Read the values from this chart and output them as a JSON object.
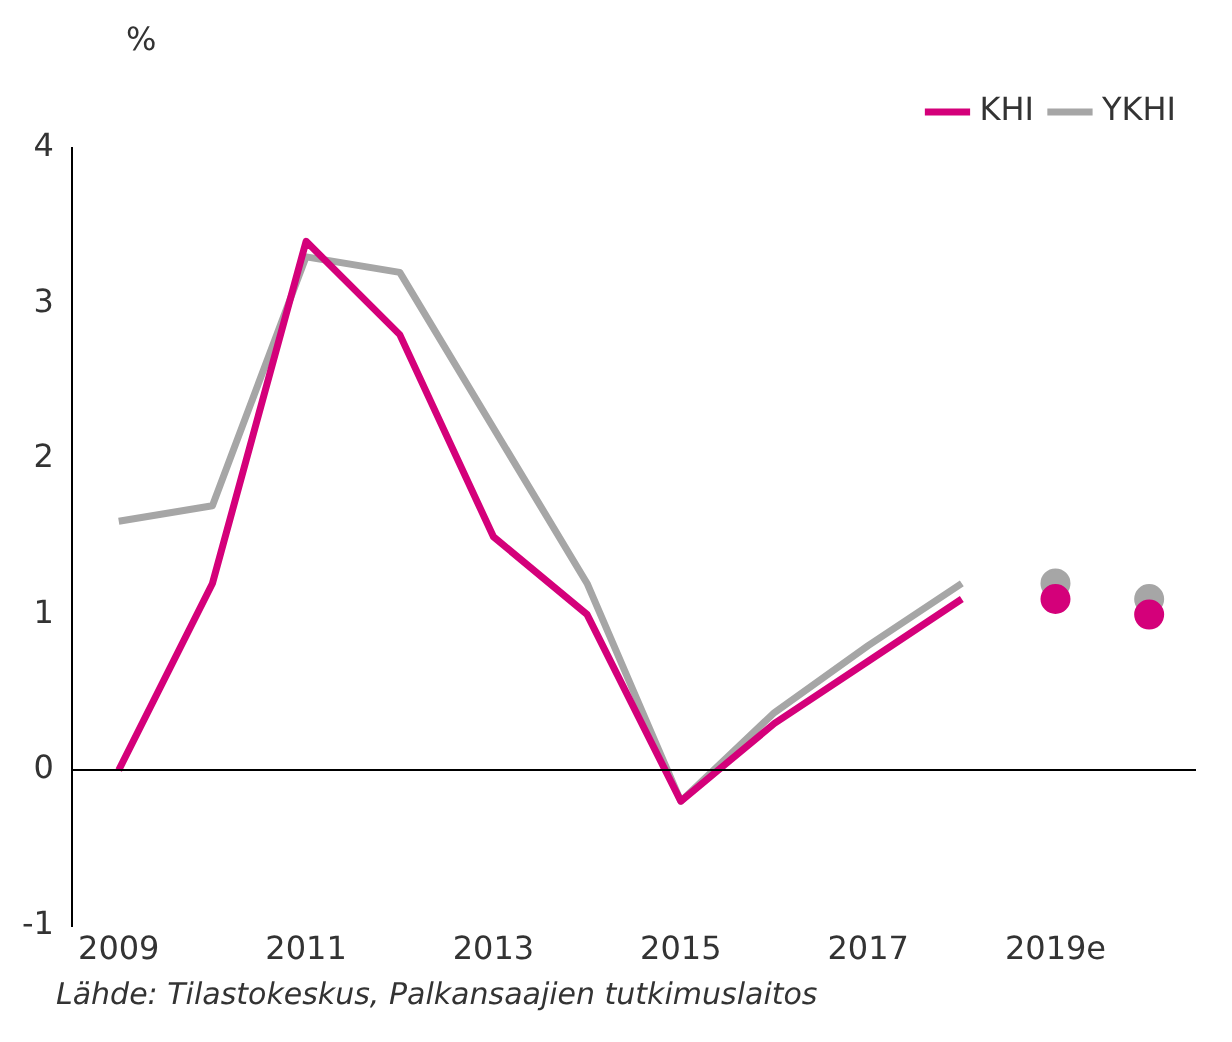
{
  "chart_data": {
    "type": "line",
    "ylabel": "%",
    "categories": [
      "2009",
      null,
      "2011",
      null,
      "2013",
      null,
      "2015",
      null,
      "2017",
      null,
      "2019e",
      null
    ],
    "series": [
      {
        "name": "KHI",
        "color": "#d4007a",
        "values": [
          0,
          1.2,
          3.4,
          2.8,
          1.5,
          1.0,
          -0.2,
          0.3,
          0.7,
          1.1,
          null,
          null
        ]
      },
      {
        "name": "YKHI",
        "color": "#a6a6a6",
        "values": [
          1.6,
          1.7,
          3.3,
          3.2,
          2.2,
          1.2,
          -0.2,
          0.37,
          0.8,
          1.2,
          null,
          null
        ]
      },
      {
        "type": "scatter",
        "marker": "circle",
        "color": "#d4007a",
        "values": [
          null,
          null,
          null,
          null,
          null,
          null,
          null,
          null,
          null,
          null,
          1.1,
          1.0
        ]
      },
      {
        "type": "scatter",
        "marker": "circle",
        "color": "#a6a6a6",
        "values": [
          null,
          null,
          null,
          null,
          null,
          null,
          null,
          null,
          null,
          null,
          1.2,
          1.1
        ]
      }
    ],
    "ylim": [
      -1,
      4
    ],
    "yticks": [
      -1,
      0,
      1,
      2,
      3,
      4
    ],
    "grid": false,
    "legend": "top right",
    "ref_lines": [
      {
        "axis": "y",
        "value": 0,
        "color": "#000000"
      }
    ],
    "annotations": [
      "Lähde: Tilastokeskus, Palkansaajien tutkimuslaitos"
    ]
  }
}
